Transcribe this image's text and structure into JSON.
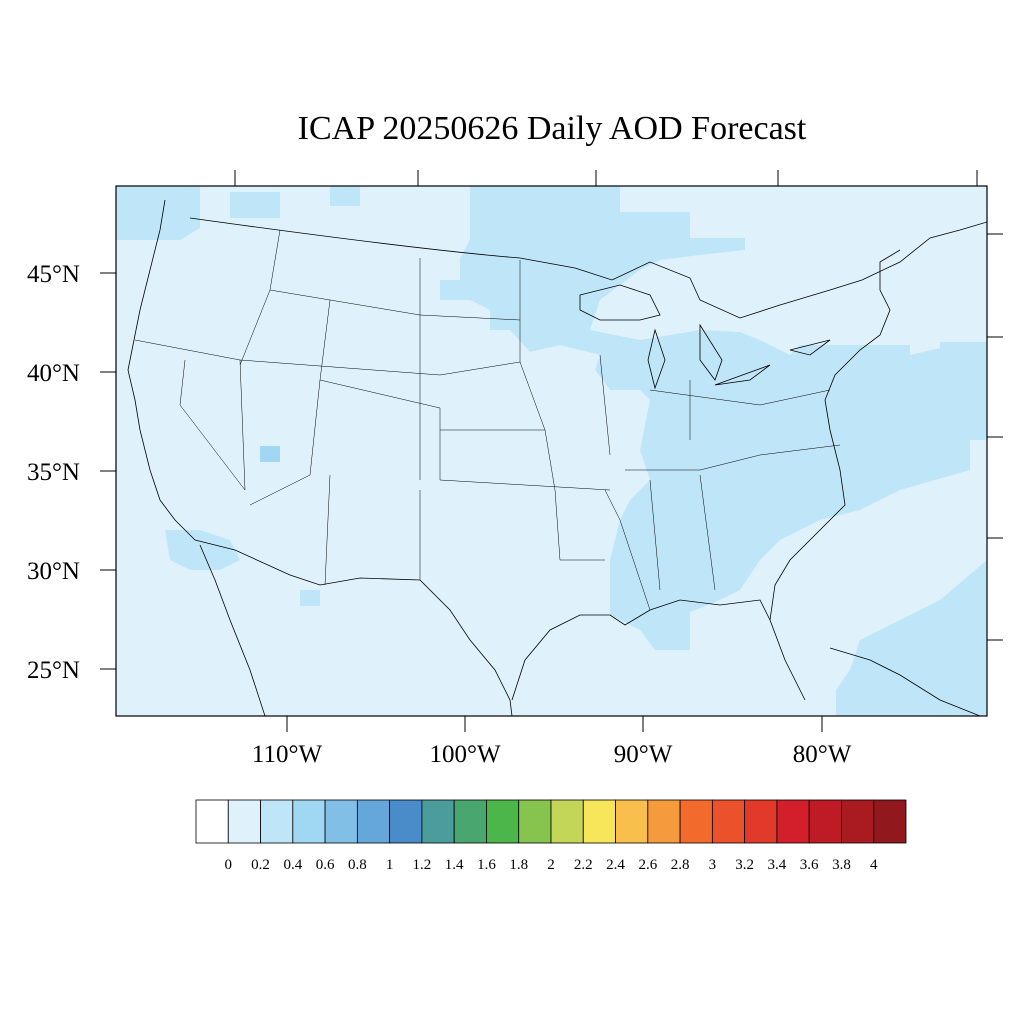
{
  "title": "ICAP 20250626 Daily AOD Forecast",
  "lat_labels": [
    "45°N",
    "40°N",
    "35°N",
    "30°N",
    "25°N"
  ],
  "lon_labels": [
    "110°W",
    "100°W",
    "90°W",
    "80°W"
  ],
  "colorbar": {
    "labels": [
      "0",
      "0.2",
      "0.4",
      "0.6",
      "0.8",
      "1",
      "1.2",
      "1.4",
      "1.6",
      "1.8",
      "2",
      "2.2",
      "2.4",
      "2.6",
      "2.8",
      "3",
      "3.2",
      "3.4",
      "3.6",
      "3.8",
      "4"
    ],
    "colors": [
      "#ffffff",
      "#dff2fc",
      "#bfe6f8",
      "#a0d8f3",
      "#82bfe6",
      "#66a7db",
      "#4a8cca",
      "#4b9d9c",
      "#49a66f",
      "#4cb64a",
      "#86c44d",
      "#c3d657",
      "#f7e55a",
      "#f8bf4c",
      "#f69a3e",
      "#f26a2c",
      "#eb512b",
      "#e1392a",
      "#d21f2b",
      "#bf1b27",
      "#aa1a21",
      "#91181d"
    ]
  },
  "colors": {
    "background_aod": "#dff2fc",
    "elevated_aod": "#bfe6f8",
    "hotspot_aod": "#a0d8f3"
  }
}
